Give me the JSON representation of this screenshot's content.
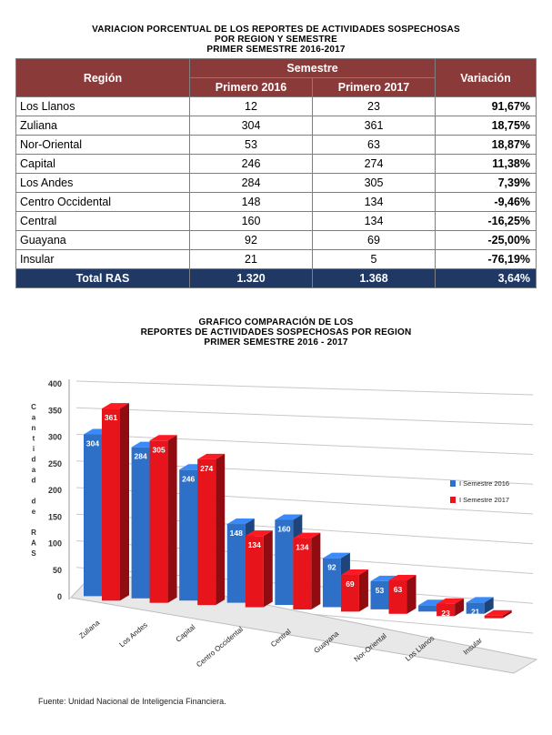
{
  "table": {
    "title_lines": [
      "VARIACION PORCENTUAL DE LOS REPORTES DE ACTIVIDADES SOSPECHOSAS",
      "POR REGION Y SEMESTRE",
      "PRIMER SEMESTRE 2016-2017"
    ],
    "header_region": "Región",
    "header_semestre": "Semestre",
    "header_first": "Primero 2016",
    "header_second": "Primero 2017",
    "header_variacion": "Variación",
    "rows": [
      {
        "region": "Los Llanos",
        "v2016": "12",
        "v2017": "23",
        "var": "91,67%"
      },
      {
        "region": "Zuliana",
        "v2016": "304",
        "v2017": "361",
        "var": "18,75%"
      },
      {
        "region": "Nor-Oriental",
        "v2016": "53",
        "v2017": "63",
        "var": "18,87%"
      },
      {
        "region": "Capital",
        "v2016": "246",
        "v2017": "274",
        "var": "11,38%"
      },
      {
        "region": "Los Andes",
        "v2016": "284",
        "v2017": "305",
        "var": "7,39%"
      },
      {
        "region": "Centro Occidental",
        "v2016": "148",
        "v2017": "134",
        "var": "-9,46%"
      },
      {
        "region": "Central",
        "v2016": "160",
        "v2017": "134",
        "var": "-16,25%"
      },
      {
        "region": "Guayana",
        "v2016": "92",
        "v2017": "69",
        "var": "-25,00%"
      },
      {
        "region": "Insular",
        "v2016": "21",
        "v2017": "5",
        "var": "-76,19%"
      }
    ],
    "total": {
      "label": "Total RAS",
      "v2016": "1.320",
      "v2017": "1.368",
      "var": "3,64%"
    }
  },
  "chart_data": {
    "type": "bar",
    "title_lines": [
      "GRAFICO COMPARACIÓN DE LOS",
      "REPORTES DE ACTIVIDADES SOSPECHOSAS POR REGION",
      "PRIMER SEMESTRE 2016 - 2017"
    ],
    "ylabel": "Cantidad de RAS",
    "ylim": [
      0,
      400
    ],
    "yticks": [
      0,
      50,
      100,
      150,
      200,
      250,
      300,
      350,
      400
    ],
    "grid": true,
    "legend_position": "right",
    "categories": [
      "Zuliana",
      "Los Andes",
      "Capital",
      "Centro Occidental",
      "Central",
      "Guayana",
      "Nor-Oriental",
      "Los Llanos",
      "Insular"
    ],
    "series": [
      {
        "name": "I Semestre 2016",
        "color": "#2e6fc7",
        "values": [
          304,
          284,
          246,
          148,
          160,
          92,
          53,
          12,
          21
        ]
      },
      {
        "name": "I Semestre 2017",
        "color": "#e8141b",
        "values": [
          361,
          305,
          274,
          134,
          134,
          69,
          63,
          23,
          5
        ]
      }
    ]
  },
  "source": "Fuente: Unidad Nacional de Inteligencia Financiera."
}
